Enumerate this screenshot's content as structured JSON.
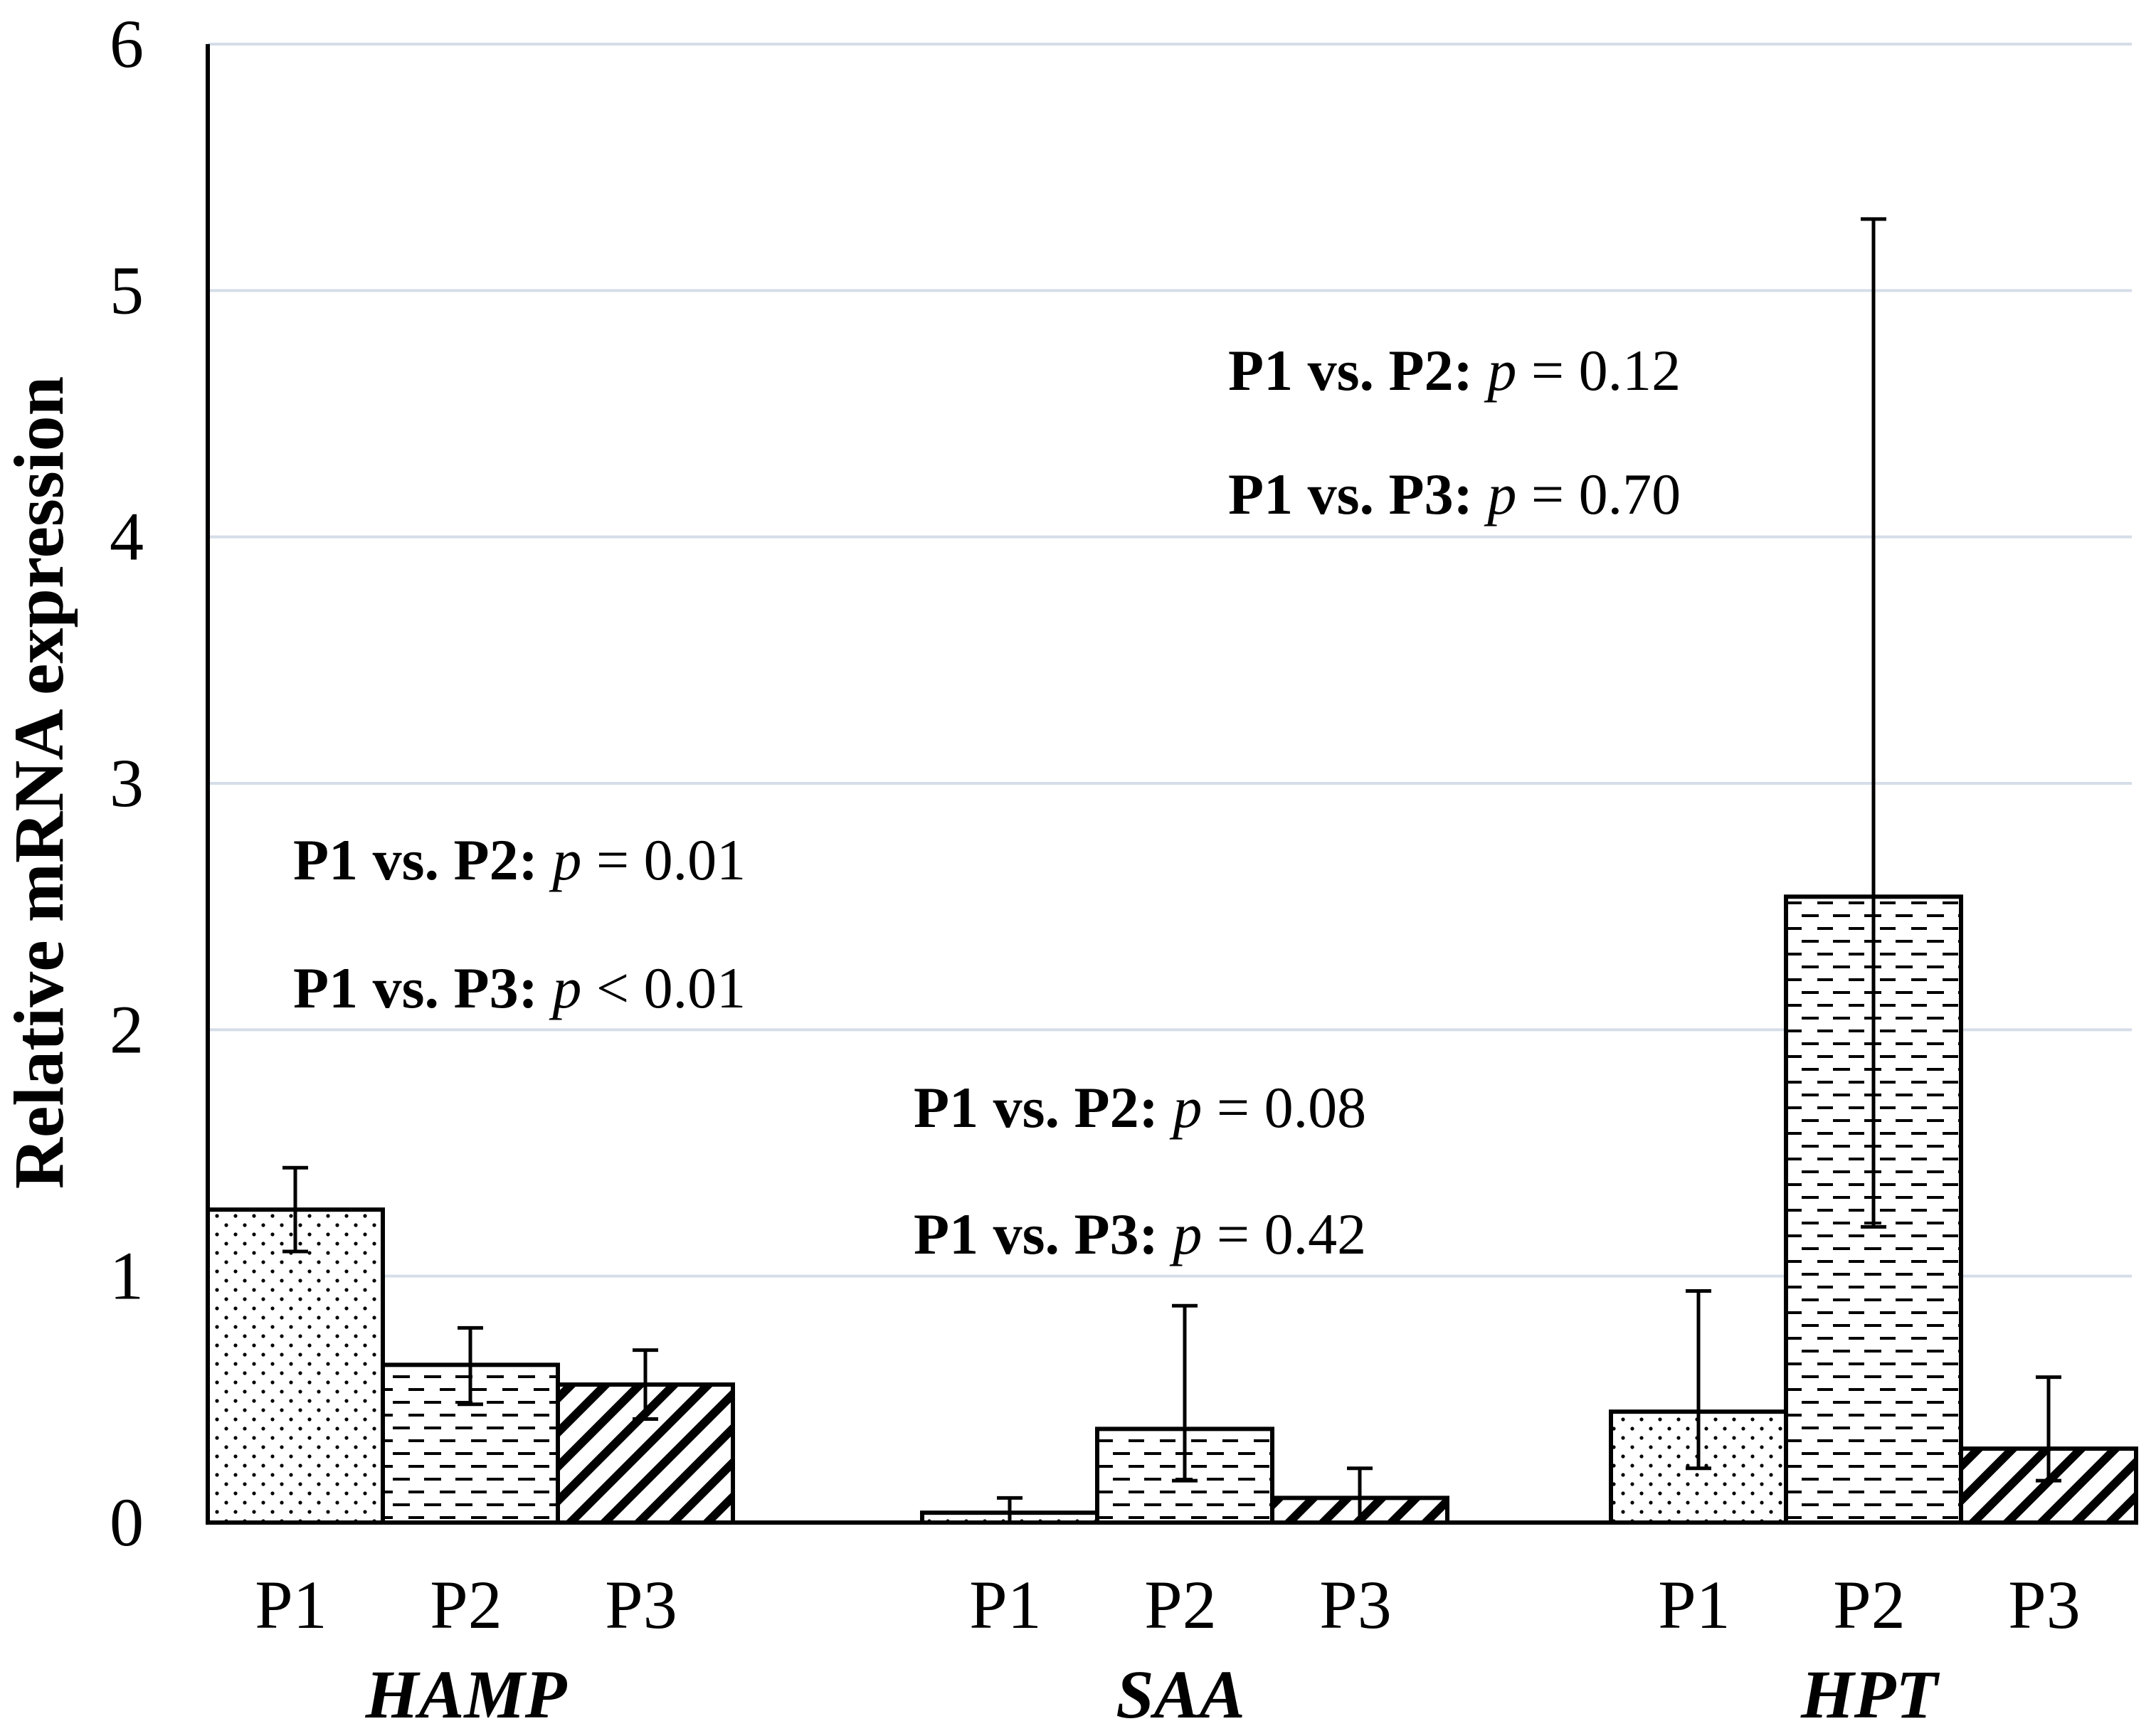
{
  "chart_data": {
    "type": "bar",
    "title": "",
    "xlabel": "",
    "ylabel": "Relative mRNA expression",
    "ylim": [
      0,
      6
    ],
    "yticks": [
      "0",
      "1",
      "2",
      "3",
      "4",
      "5",
      "6"
    ],
    "grid": true,
    "groups": [
      {
        "gene": "HAMP",
        "bars": [
          {
            "label": "P1",
            "pattern": "dots",
            "value": 1.27,
            "err_low": 1.1,
            "err_high": 1.44
          },
          {
            "label": "P2",
            "pattern": "dashes",
            "value": 0.64,
            "err_low": 0.48,
            "err_high": 0.79
          },
          {
            "label": "P3",
            "pattern": "diagonal",
            "value": 0.56,
            "err_low": 0.42,
            "err_high": 0.7
          }
        ],
        "annotations": [
          {
            "bold": "P1 vs. P2:",
            "italic": "p",
            "rest": " = 0.01"
          },
          {
            "bold": "P1 vs. P3:",
            "italic": "p",
            "rest": " < 0.01"
          }
        ]
      },
      {
        "gene": "SAA",
        "bars": [
          {
            "label": "P1",
            "pattern": "dots",
            "value": 0.04,
            "err_low": 0.0,
            "err_high": 0.1
          },
          {
            "label": "P2",
            "pattern": "dashes",
            "value": 0.38,
            "err_low": 0.17,
            "err_high": 0.88
          },
          {
            "label": "P3",
            "pattern": "diagonal",
            "value": 0.1,
            "err_low": 0.0,
            "err_high": 0.22
          }
        ],
        "annotations": [
          {
            "bold": "P1 vs. P2:",
            "italic": "p",
            "rest": " = 0.08"
          },
          {
            "bold": "P1 vs. P3:",
            "italic": "p",
            "rest": " = 0.42"
          }
        ]
      },
      {
        "gene": "HPT",
        "bars": [
          {
            "label": "P1",
            "pattern": "dots",
            "value": 0.45,
            "err_low": 0.22,
            "err_high": 0.94
          },
          {
            "label": "P2",
            "pattern": "dashes",
            "value": 2.54,
            "err_low": 1.2,
            "err_high": 5.29
          },
          {
            "label": "P3",
            "pattern": "diagonal",
            "value": 0.3,
            "err_low": 0.17,
            "err_high": 0.59
          }
        ],
        "annotations": [
          {
            "bold": "P1 vs. P2:",
            "italic": "p",
            "rest": " = 0.12"
          },
          {
            "bold": "P1 vs. P3:",
            "italic": "p",
            "rest": " = 0.70"
          }
        ]
      }
    ]
  }
}
